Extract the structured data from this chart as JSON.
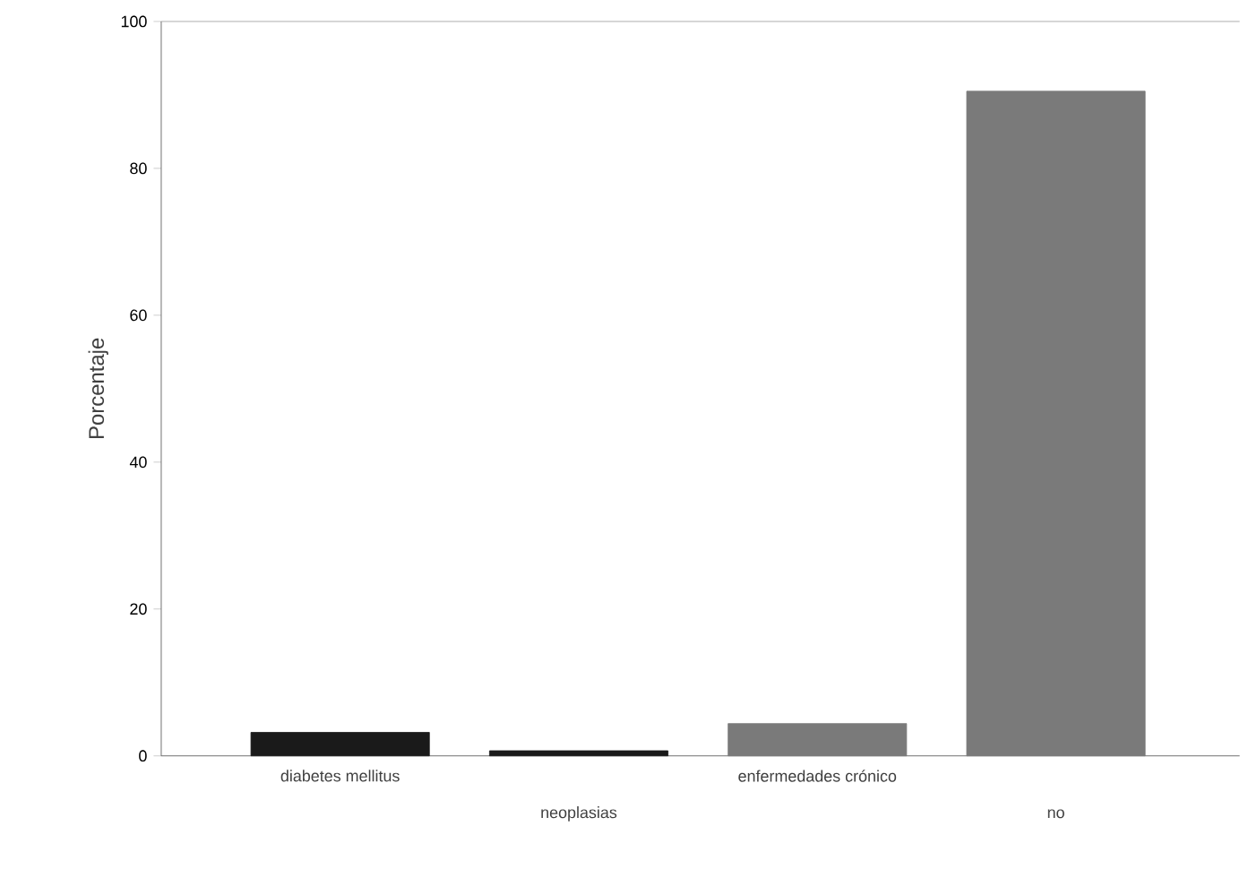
{
  "chart_data": {
    "type": "bar",
    "ylabel": "Porcentaje",
    "categories": [
      "diabetes mellitus",
      "neoplasias",
      "enfermedades crónico",
      "no"
    ],
    "values": [
      3.2,
      0.7,
      4.4,
      90.5
    ],
    "colors": [
      "#1a1a1a",
      "#1a1a1a",
      "#7a7a7a",
      "#7a7a7a"
    ],
    "ylim": [
      0,
      100
    ],
    "yticks": [
      0,
      20,
      40,
      60,
      80,
      100
    ]
  }
}
